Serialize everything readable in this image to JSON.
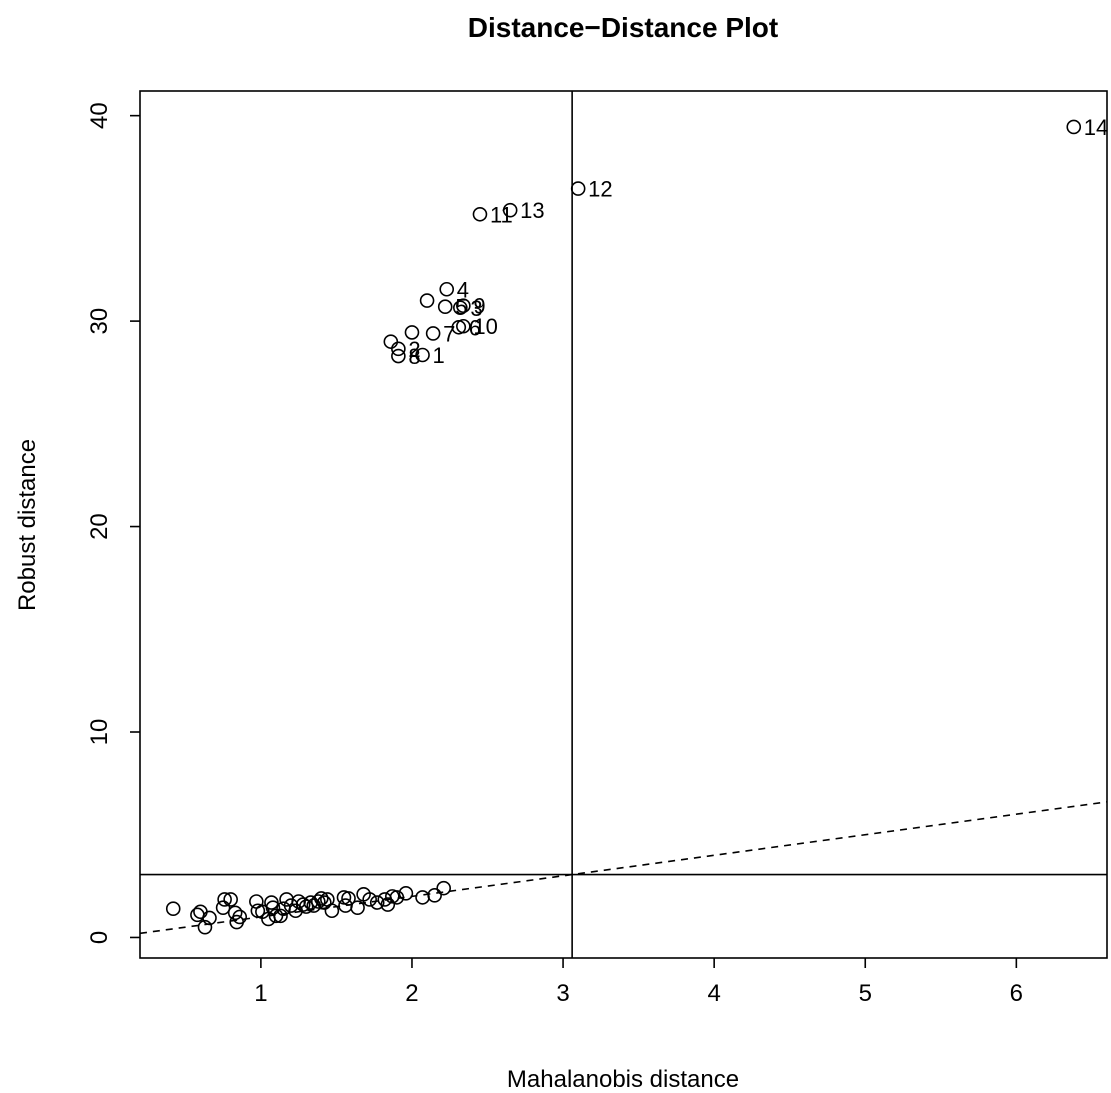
{
  "chart_data": {
    "type": "scatter",
    "title": "Distance−Distance Plot",
    "xlabel": "Mahalanobis distance",
    "ylabel": "Robust distance",
    "xlim": [
      0.2,
      6.6
    ],
    "ylim": [
      -1.0,
      41.2
    ],
    "xticks": [
      1,
      2,
      3,
      4,
      5,
      6
    ],
    "yticks": [
      0,
      10,
      20,
      30,
      40
    ],
    "cutoff_x": 3.06,
    "cutoff_y": 3.06,
    "reference_line": {
      "slope": 1,
      "intercept": 0,
      "style": "dashed"
    },
    "grid": false,
    "points": [
      {
        "x": 0.42,
        "y": 1.4
      },
      {
        "x": 0.58,
        "y": 1.1
      },
      {
        "x": 0.6,
        "y": 1.25
      },
      {
        "x": 0.63,
        "y": 0.5
      },
      {
        "x": 0.66,
        "y": 0.95
      },
      {
        "x": 0.75,
        "y": 1.45
      },
      {
        "x": 0.76,
        "y": 1.85
      },
      {
        "x": 0.8,
        "y": 1.85
      },
      {
        "x": 0.83,
        "y": 1.2
      },
      {
        "x": 0.84,
        "y": 0.75
      },
      {
        "x": 0.86,
        "y": 1.0
      },
      {
        "x": 0.97,
        "y": 1.75
      },
      {
        "x": 0.98,
        "y": 1.3
      },
      {
        "x": 1.01,
        "y": 1.25
      },
      {
        "x": 1.05,
        "y": 0.9
      },
      {
        "x": 1.07,
        "y": 1.7
      },
      {
        "x": 1.08,
        "y": 1.45
      },
      {
        "x": 1.1,
        "y": 1.05
      },
      {
        "x": 1.13,
        "y": 1.05
      },
      {
        "x": 1.15,
        "y": 1.4
      },
      {
        "x": 1.17,
        "y": 1.85
      },
      {
        "x": 1.2,
        "y": 1.55
      },
      {
        "x": 1.23,
        "y": 1.3
      },
      {
        "x": 1.25,
        "y": 1.75
      },
      {
        "x": 1.28,
        "y": 1.6
      },
      {
        "x": 1.3,
        "y": 1.5
      },
      {
        "x": 1.33,
        "y": 1.7
      },
      {
        "x": 1.35,
        "y": 1.55
      },
      {
        "x": 1.38,
        "y": 1.75
      },
      {
        "x": 1.4,
        "y": 1.9
      },
      {
        "x": 1.42,
        "y": 1.7
      },
      {
        "x": 1.44,
        "y": 1.85
      },
      {
        "x": 1.47,
        "y": 1.3
      },
      {
        "x": 1.55,
        "y": 1.95
      },
      {
        "x": 1.56,
        "y": 1.55
      },
      {
        "x": 1.58,
        "y": 1.9
      },
      {
        "x": 1.64,
        "y": 1.45
      },
      {
        "x": 1.68,
        "y": 2.1
      },
      {
        "x": 1.72,
        "y": 1.85
      },
      {
        "x": 1.77,
        "y": 1.7
      },
      {
        "x": 1.82,
        "y": 1.85
      },
      {
        "x": 1.84,
        "y": 1.6
      },
      {
        "x": 1.87,
        "y": 2.0
      },
      {
        "x": 1.9,
        "y": 1.95
      },
      {
        "x": 1.96,
        "y": 2.15
      },
      {
        "x": 2.07,
        "y": 1.95
      },
      {
        "x": 2.15,
        "y": 2.05
      },
      {
        "x": 2.21,
        "y": 2.4
      },
      {
        "x": 2.07,
        "y": 28.35,
        "label": "1"
      },
      {
        "x": 1.91,
        "y": 28.65,
        "label": "2"
      },
      {
        "x": 2.32,
        "y": 30.65,
        "label": "3"
      },
      {
        "x": 2.23,
        "y": 31.55,
        "label": "4"
      },
      {
        "x": 2.22,
        "y": 30.7,
        "label": "5"
      },
      {
        "x": 2.31,
        "y": 29.7,
        "label": "6"
      },
      {
        "x": 2.14,
        "y": 29.4,
        "label": "7"
      },
      {
        "x": 1.91,
        "y": 28.3,
        "label": "8"
      },
      {
        "x": 2.34,
        "y": 30.75,
        "label": "9"
      },
      {
        "x": 2.34,
        "y": 29.75,
        "label": "10"
      },
      {
        "x": 2.45,
        "y": 35.2,
        "label": "11"
      },
      {
        "x": 3.1,
        "y": 36.45,
        "label": "12"
      },
      {
        "x": 2.65,
        "y": 35.4,
        "label": "13"
      },
      {
        "x": 6.38,
        "y": 39.45,
        "label": "14"
      },
      {
        "x": 2.1,
        "y": 31.0
      },
      {
        "x": 1.86,
        "y": 29.0
      },
      {
        "x": 2.0,
        "y": 29.45
      }
    ]
  }
}
